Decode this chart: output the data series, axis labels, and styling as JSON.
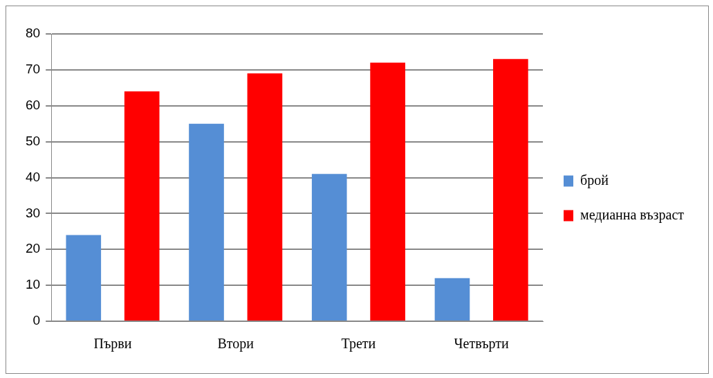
{
  "chart_data": {
    "type": "bar",
    "categories": [
      "Първи",
      "Втори",
      "Трети",
      "Четвърти"
    ],
    "series": [
      {
        "name": "брой",
        "color": "#558ed5",
        "values": [
          24,
          55,
          41,
          12
        ]
      },
      {
        "name": "медианна възраст",
        "color": "#ff0000",
        "values": [
          64,
          69,
          72,
          73
        ]
      }
    ],
    "ylim": [
      0,
      80
    ],
    "yticks": [
      0,
      10,
      20,
      30,
      40,
      50,
      60,
      70,
      80
    ],
    "grid": "y",
    "legend": "right"
  }
}
